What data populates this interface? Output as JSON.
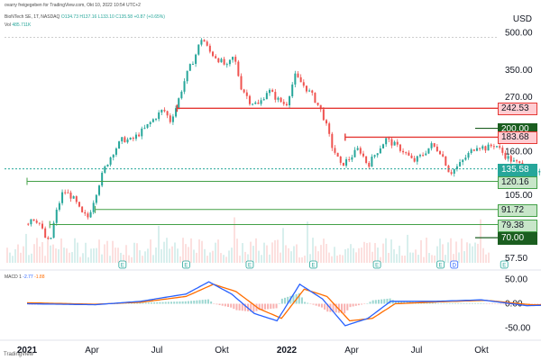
{
  "header": {
    "shared_by": "ovarry freigegeben for TradingView.com, Okt 10, 2022 10:54 UTC+2",
    "symbol": "BioNTech SE, 1T, NASDAQ",
    "open": "O134.73",
    "high": "H137.16",
    "low": "L133.10",
    "close": "C135.58",
    "change": "+0.87 (+0.65%)",
    "volume_label": "Vol",
    "volume_value": "485.711K"
  },
  "macd": {
    "label": "MACD",
    "params": "1",
    "v1": "-2.77",
    "v2": "-1.88"
  },
  "currency": "USD",
  "watermark": "TradingView",
  "colors": {
    "up": "#26a69a",
    "down": "#ef5350",
    "support": "#43a047",
    "resistance": "#e53935",
    "macd_line": "#2962ff",
    "signal_line": "#ff6d00",
    "dark_green": "#1b5e20"
  },
  "chart_data": {
    "type": "candlestick",
    "x_ticks": [
      "2021",
      "Apr",
      "Jul",
      "Okt",
      "2022",
      "Apr",
      "Jul",
      "Okt"
    ],
    "y_ticks": [
      "500.00",
      "350.00",
      "270.00",
      "200.00",
      "160.00",
      "105.00",
      "57.50"
    ],
    "macd_ticks": [
      "50.00",
      "0.00",
      "-50.00"
    ],
    "scale": "log",
    "ylim": [
      55,
      520
    ],
    "path_points": [
      [
        0,
        80
      ],
      [
        0.02,
        85
      ],
      [
        0.05,
        82
      ],
      [
        0.08,
        70
      ],
      [
        0.1,
        66
      ],
      [
        0.13,
        90
      ],
      [
        0.16,
        110
      ],
      [
        0.19,
        105
      ],
      [
        0.21,
        100
      ],
      [
        0.24,
        88
      ],
      [
        0.27,
        85
      ],
      [
        0.3,
        105
      ],
      [
        0.34,
        135
      ],
      [
        0.38,
        160
      ],
      [
        0.42,
        180
      ],
      [
        0.46,
        178
      ],
      [
        0.52,
        200
      ],
      [
        0.56,
        220
      ],
      [
        0.6,
        240
      ],
      [
        0.63,
        215
      ],
      [
        0.66,
        250
      ],
      [
        0.7,
        330
      ],
      [
        0.74,
        400
      ],
      [
        0.77,
        480
      ],
      [
        0.8,
        420
      ],
      [
        0.84,
        390
      ],
      [
        0.88,
        360
      ],
      [
        0.91,
        400
      ],
      [
        0.94,
        300
      ],
      [
        0.98,
        260
      ],
      [
        1.02,
        250
      ],
      [
        1.06,
        290
      ],
      [
        1.1,
        265
      ],
      [
        1.14,
        250
      ],
      [
        1.18,
        330
      ],
      [
        1.22,
        300
      ],
      [
        1.26,
        270
      ],
      [
        1.3,
        230
      ],
      [
        1.34,
        170
      ],
      [
        1.38,
        140
      ],
      [
        1.42,
        150
      ],
      [
        1.46,
        165
      ],
      [
        1.5,
        140
      ],
      [
        1.54,
        160
      ],
      [
        1.58,
        180
      ],
      [
        1.62,
        170
      ],
      [
        1.66,
        160
      ],
      [
        1.7,
        145
      ],
      [
        1.74,
        155
      ],
      [
        1.78,
        170
      ],
      [
        1.82,
        160
      ],
      [
        1.86,
        130
      ],
      [
        1.9,
        140
      ],
      [
        1.94,
        155
      ],
      [
        1.98,
        170
      ],
      [
        2.02,
        165
      ],
      [
        2.06,
        172
      ],
      [
        2.1,
        155
      ],
      [
        2.14,
        145
      ],
      [
        2.18,
        140
      ],
      [
        2.22,
        125
      ],
      [
        2.26,
        130
      ],
      [
        2.3,
        135.58
      ]
    ],
    "horizontal_levels": [
      {
        "value": 242.53,
        "label": "242.53",
        "kind": "resistance",
        "from": 0.66
      },
      {
        "value": 200.0,
        "label": "200.00",
        "kind": "target"
      },
      {
        "value": 183.68,
        "label": "183.68",
        "kind": "resistance",
        "from": 1.4
      },
      {
        "value": 135.58,
        "label": "135.58",
        "kind": "last_price"
      },
      {
        "value": 120.16,
        "label": "120.16",
        "kind": "support",
        "from": 0.0
      },
      {
        "value": 91.72,
        "label": "91.72",
        "kind": "support",
        "from": 0.3
      },
      {
        "value": 79.38,
        "label": "79.38",
        "kind": "support",
        "from": 0.1
      },
      {
        "value": 70.0,
        "label": "70.00",
        "kind": "target"
      }
    ],
    "event_markers": [
      {
        "x": 0.42,
        "kind": "E"
      },
      {
        "x": 0.7,
        "kind": "E"
      },
      {
        "x": 0.98,
        "kind": "E"
      },
      {
        "x": 1.26,
        "kind": "E"
      },
      {
        "x": 1.54,
        "kind": "E"
      },
      {
        "x": 1.82,
        "kind": "E"
      },
      {
        "x": 1.88,
        "kind": "D"
      },
      {
        "x": 2.1,
        "kind": "E"
      }
    ],
    "macd_series": {
      "macd_points": [
        [
          0,
          0
        ],
        [
          0.3,
          -2
        ],
        [
          0.5,
          5
        ],
        [
          0.7,
          20
        ],
        [
          0.8,
          45
        ],
        [
          0.9,
          20
        ],
        [
          1.0,
          -20
        ],
        [
          1.1,
          -35
        ],
        [
          1.2,
          40
        ],
        [
          1.3,
          10
        ],
        [
          1.4,
          -45
        ],
        [
          1.5,
          -30
        ],
        [
          1.6,
          5
        ],
        [
          1.8,
          5
        ],
        [
          2.0,
          8
        ],
        [
          2.2,
          -4
        ],
        [
          2.3,
          -2.77
        ]
      ],
      "signal_points": [
        [
          0,
          2
        ],
        [
          0.3,
          -1
        ],
        [
          0.5,
          3
        ],
        [
          0.7,
          15
        ],
        [
          0.82,
          40
        ],
        [
          0.92,
          25
        ],
        [
          1.02,
          -10
        ],
        [
          1.12,
          -30
        ],
        [
          1.22,
          30
        ],
        [
          1.32,
          15
        ],
        [
          1.42,
          -35
        ],
        [
          1.52,
          -30
        ],
        [
          1.62,
          0
        ],
        [
          1.82,
          4
        ],
        [
          2.02,
          7
        ],
        [
          2.22,
          -2
        ],
        [
          2.3,
          -1.88
        ]
      ]
    }
  }
}
